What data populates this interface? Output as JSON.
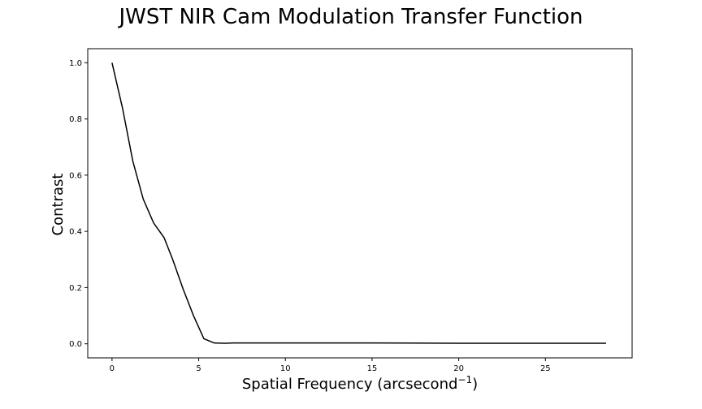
{
  "chart_data": {
    "type": "line",
    "title": "JWST NIR Cam Modulation Transfer Function",
    "xlabel": "Spatial Frequency (arcsecond",
    "xlabel_sup": "−1",
    "xlabel_close": ")",
    "ylabel": "Contrast",
    "xlim": [
      -1.4,
      30.0
    ],
    "ylim": [
      -0.05,
      1.05
    ],
    "x_ticks": [
      0,
      5,
      10,
      15,
      20,
      25
    ],
    "x_tick_labels": [
      "0",
      "5",
      "10",
      "15",
      "20",
      "25"
    ],
    "y_ticks": [
      0.0,
      0.2,
      0.4,
      0.6,
      0.8,
      1.0
    ],
    "y_tick_labels": [
      "0.0",
      "0.2",
      "0.4",
      "0.6",
      "0.8",
      "1.0"
    ],
    "grid": false,
    "line_color": "#000000",
    "series": [
      {
        "x": [
          0.0,
          0.6,
          1.2,
          1.8,
          2.4,
          3.0,
          3.5,
          4.1,
          4.7,
          5.3,
          5.9,
          6.5,
          7.0,
          10.0,
          15.0,
          20.0,
          25.0,
          28.5
        ],
        "y": [
          1.0,
          0.84,
          0.65,
          0.515,
          0.43,
          0.378,
          0.3,
          0.195,
          0.1,
          0.018,
          0.003,
          0.002,
          0.003,
          0.003,
          0.003,
          0.002,
          0.002,
          0.002
        ]
      }
    ]
  }
}
